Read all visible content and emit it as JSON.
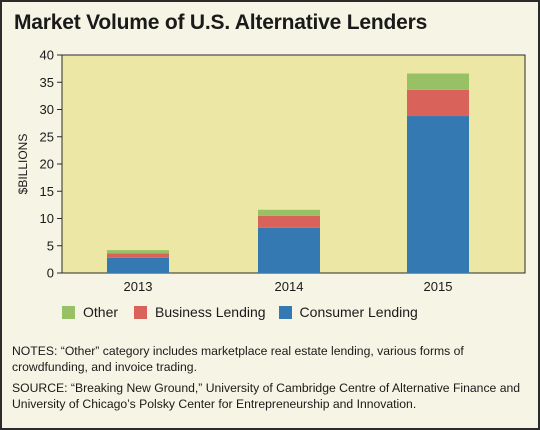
{
  "title": "Market Volume of U.S. Alternative Lenders",
  "chart_data": {
    "type": "bar",
    "stacked": true,
    "categories": [
      "2013",
      "2014",
      "2015"
    ],
    "series": [
      {
        "name": "Consumer Lending",
        "color": "#3579b3",
        "values": [
          2.8,
          8.3,
          28.8
        ]
      },
      {
        "name": "Business Lending",
        "color": "#d9635a",
        "values": [
          0.8,
          2.2,
          4.8
        ]
      },
      {
        "name": "Other",
        "color": "#97c164",
        "values": [
          0.6,
          1.1,
          3.0
        ]
      }
    ],
    "ylabel": "$BILLIONS",
    "xlabel": "",
    "ylim": [
      0,
      40
    ],
    "yticks": [
      0,
      5,
      10,
      15,
      20,
      25,
      30,
      35,
      40
    ],
    "plot_background": "#ede7a5",
    "grid": false
  },
  "legend": [
    {
      "label": "Other",
      "color": "#97c164"
    },
    {
      "label": "Business Lending",
      "color": "#d9635a"
    },
    {
      "label": "Consumer Lending",
      "color": "#3579b3"
    }
  ],
  "notes": {
    "note": "NOTES: “Other” category includes marketplace real estate lending, various forms of crowdfunding, and invoice trading.",
    "source": "SOURCE: “Breaking New Ground,” University of Cambridge Centre of Alternative Finance and University of Chicago’s Polsky Center for Entrepreneurship and Innovation."
  }
}
